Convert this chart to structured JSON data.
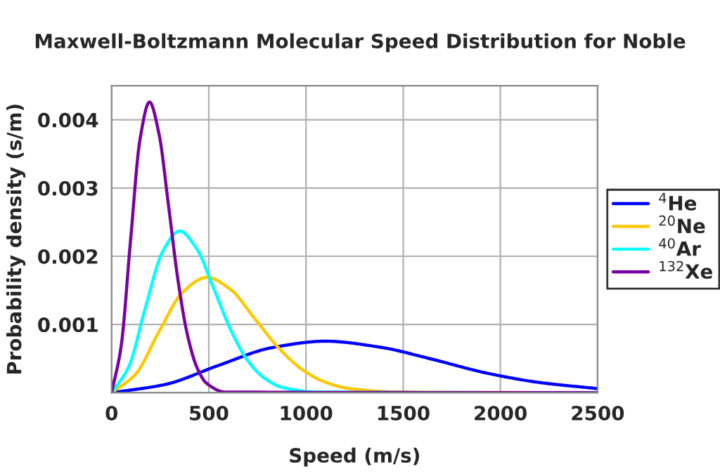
{
  "chart_data": {
    "type": "line",
    "title": "Maxwell-Boltzmann Molecular Speed Distribution for Noble",
    "xlabel": "Speed (m/s)",
    "ylabel": "Probability density (s/m)",
    "xlim": [
      0,
      2500
    ],
    "xticks": [
      0,
      500,
      1000,
      1500,
      2000,
      2500
    ],
    "ylim": [
      0,
      0.0045
    ],
    "yticks": [
      {
        "value": 0,
        "label": null
      },
      0.001,
      0.002,
      0.003,
      0.004
    ],
    "grid": true,
    "legend": "right",
    "marker": "none",
    "line_style": "solid",
    "series": [
      {
        "name": "$^{4}$He",
        "color": "#0000ff",
        "x": [
          0,
          275,
          550,
          825,
          1100,
          1375,
          1650,
          1925,
          2200,
          2500
        ],
        "values": [
          0,
          0.00012,
          0.0004,
          0.00066,
          0.000755,
          0.00067,
          0.00049,
          0.00029,
          0.00015,
          6e-05
        ]
      },
      {
        "name": "$^{20}$Ne",
        "color": "#ffc800",
        "x": [
          0,
          123,
          245,
          368,
          490,
          613,
          735,
          858,
          980,
          1103,
          1225,
          1470,
          2500
        ],
        "values": [
          0,
          0.00027,
          0.0009,
          0.00148,
          0.00169,
          0.00151,
          0.00109,
          0.00066,
          0.00034,
          0.00015,
          6e-05,
          1e-05,
          0
        ]
      },
      {
        "name": "$^{40}$Ar",
        "color": "#00ffff",
        "x": [
          0,
          88,
          175,
          263,
          350,
          438,
          525,
          613,
          700,
          788,
          875,
          1050,
          2500
        ],
        "values": [
          0,
          0.00038,
          0.00126,
          0.00207,
          0.00237,
          0.00211,
          0.00153,
          0.00092,
          0.00047,
          0.00021,
          8e-05,
          1e-05,
          0
        ]
      },
      {
        "name": "$^{132}$Xe",
        "color": "#7a00a0",
        "x": [
          0,
          49,
          98,
          146,
          195,
          244,
          293,
          341,
          390,
          439,
          488,
          585,
          2500
        ],
        "values": [
          0,
          0.00068,
          0.00225,
          0.00371,
          0.00426,
          0.00379,
          0.00274,
          0.00166,
          0.00085,
          0.00037,
          0.00014,
          1e-05,
          0
        ]
      }
    ]
  }
}
